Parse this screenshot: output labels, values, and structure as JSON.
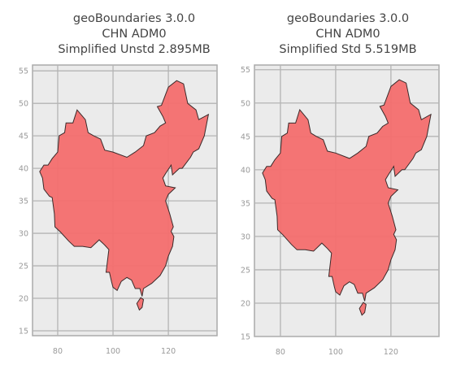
{
  "chart_data": [
    {
      "type": "map",
      "title": [
        "geoBoundaries 3.0.0",
        "CHN ADM0",
        "Simplified Unstd 2.895MB"
      ],
      "xlim": [
        70.9,
        137.6
      ],
      "ylim": [
        14.25,
        55.9
      ],
      "xticks": [
        80,
        100,
        120
      ],
      "yticks": [
        15,
        20,
        25,
        30,
        35,
        40,
        45,
        50,
        55
      ],
      "grid": true,
      "background": "#ebebeb",
      "series": [
        {
          "color": "#f46e6e",
          "x": [
            73.5,
            75,
            76.5,
            78,
            80,
            80.5,
            82.5,
            83,
            85.5,
            87,
            88,
            90,
            91,
            93,
            95.5,
            97,
            100,
            105,
            108,
            111,
            112,
            115,
            117,
            119,
            118,
            116,
            117.5,
            120,
            123,
            125.5,
            127,
            130,
            131,
            134.5,
            133,
            131,
            129,
            128,
            125,
            124,
            121.5,
            121,
            119,
            118,
            119,
            122.5,
            120,
            119,
            120.5,
            121.8,
            121,
            122,
            121.5,
            120,
            119,
            117,
            114,
            111,
            110.5,
            109.7,
            108,
            106.7,
            105,
            103,
            101.5,
            100,
            99.5,
            98.7,
            97.5,
            98.5,
            97,
            95,
            92,
            89,
            86,
            84,
            81,
            79,
            78.8,
            78,
            77,
            75,
            74.5
          ],
          "y": [
            39.5,
            40.5,
            40.5,
            41.5,
            42.5,
            45,
            45.5,
            47,
            47,
            49,
            48.5,
            47.5,
            45.5,
            45,
            44.5,
            42.8,
            42.5,
            41.7,
            42.5,
            43.5,
            45,
            45.5,
            46.5,
            47,
            48,
            49.5,
            49.7,
            52.5,
            53.5,
            53,
            50,
            49,
            47.5,
            48.3,
            45,
            43,
            42.5,
            41.7,
            40,
            40,
            39,
            40.5,
            39.2,
            38.5,
            37.3,
            37,
            36,
            35,
            33,
            31,
            30.3,
            29.5,
            28,
            26.5,
            25,
            23.5,
            22.3,
            21.5,
            20.3,
            21.5,
            21.5,
            22.8,
            23.2,
            22.6,
            21.2,
            21.7,
            22.5,
            24,
            24,
            27.5,
            28.2,
            29,
            27.8,
            28,
            28,
            28.8,
            30.2,
            31,
            33,
            35.5,
            35.7,
            36.8,
            38.5
          ]
        },
        {
          "color": "#f46e6e",
          "x": [
            108.6,
            109.5,
            110.5,
            111,
            110
          ],
          "y": [
            19.2,
            18.2,
            18.6,
            19.8,
            20.1
          ]
        }
      ]
    },
    {
      "type": "map",
      "title": [
        "geoBoundaries 3.0.0",
        "CHN ADM0",
        "Simplified Std 5.519MB"
      ],
      "xlim": [
        70.6,
        137.4
      ],
      "ylim": [
        15,
        55.7
      ],
      "xticks": [
        80,
        100,
        120
      ],
      "yticks": [
        15,
        20,
        25,
        30,
        35,
        40,
        45,
        50,
        55
      ],
      "grid": true,
      "background": "#ebebeb",
      "series": [
        {
          "color": "#f46e6e",
          "x": [
            73.5,
            75,
            76.5,
            78,
            80,
            80.5,
            82.5,
            83,
            85.5,
            87,
            88,
            90,
            91,
            93,
            95.5,
            97,
            100,
            105,
            108,
            111,
            112,
            115,
            117,
            119,
            118,
            116,
            117.5,
            120,
            123,
            125.5,
            127,
            130,
            131,
            134.5,
            133,
            131,
            129,
            128,
            125,
            124,
            121.5,
            121,
            119,
            118,
            119,
            122.5,
            120,
            119,
            120.5,
            121.8,
            121,
            122,
            121.5,
            120,
            119,
            117,
            114,
            111,
            110.5,
            109.7,
            108,
            106.7,
            105,
            103,
            101.5,
            100,
            99.5,
            98.7,
            97.5,
            98.5,
            97,
            95,
            92,
            89,
            86,
            84,
            81,
            79,
            78.8,
            78,
            77,
            75,
            74.5
          ],
          "y": [
            39.5,
            40.5,
            40.5,
            41.5,
            42.5,
            45,
            45.5,
            47,
            47,
            49,
            48.5,
            47.5,
            45.5,
            45,
            44.5,
            42.8,
            42.5,
            41.7,
            42.5,
            43.5,
            45,
            45.5,
            46.5,
            47,
            48,
            49.5,
            49.7,
            52.5,
            53.5,
            53,
            50,
            49,
            47.5,
            48.3,
            45,
            43,
            42.5,
            41.7,
            40,
            40,
            39,
            40.5,
            39.2,
            38.5,
            37.3,
            37,
            36,
            35,
            33,
            31,
            30.3,
            29.5,
            28,
            26.5,
            25,
            23.5,
            22.3,
            21.5,
            20.3,
            21.5,
            21.5,
            22.8,
            23.2,
            22.6,
            21.2,
            21.7,
            22.5,
            24,
            24,
            27.5,
            28.2,
            29,
            27.8,
            28,
            28,
            28.8,
            30.2,
            31,
            33,
            35.5,
            35.7,
            36.8,
            38.5
          ]
        },
        {
          "color": "#f46e6e",
          "x": [
            108.6,
            109.5,
            110.5,
            111,
            110
          ],
          "y": [
            19.2,
            18.2,
            18.6,
            19.8,
            20.1
          ]
        }
      ]
    }
  ]
}
